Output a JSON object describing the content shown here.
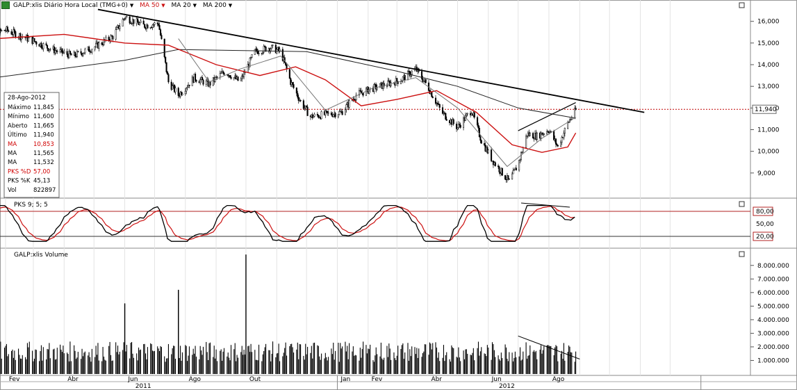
{
  "toolbar": {
    "symbol_label": "GALP:xlis Diário Hora Local (TMG+0)",
    "ma1_label": "MA 50",
    "ma2_label": "MA 20",
    "ma3_label": "MA 200",
    "symbol_icon": "stock-chart-icon"
  },
  "info_box": {
    "date": "28-Ago-2012",
    "rows": [
      {
        "label": "Máximo",
        "value": "11,845",
        "color": "#000000"
      },
      {
        "label": "Mínimo",
        "value": "11,600",
        "color": "#000000"
      },
      {
        "label": "Aberto",
        "value": "11,665",
        "color": "#000000"
      },
      {
        "label": "Último",
        "value": "11,940",
        "color": "#000000"
      },
      {
        "label": "MA",
        "value": "10,853",
        "color": "#d00000"
      },
      {
        "label": "MA",
        "value": "11,565",
        "color": "#000000"
      },
      {
        "label": "MA",
        "value": "11,532",
        "color": "#000000"
      },
      {
        "label": "PKS %D",
        "value": "57,00",
        "color": "#d00000"
      },
      {
        "label": "PKS %K",
        "value": "45,13",
        "color": "#000000"
      },
      {
        "label": "Vol",
        "value": "822897",
        "color": "#000000"
      }
    ]
  },
  "colors": {
    "price": "#000000",
    "ma_red": "#cc1111",
    "ma_gray": "#777777",
    "ma_long": "#222222",
    "pks_d": "#cc1111",
    "pks_k": "#000000",
    "band": "#b22222"
  },
  "chart_data": [
    {
      "type": "candlestick",
      "title": "GALP:xlis Diário Hora Local (TMG+0)",
      "y_ticks": [
        "16,000",
        "15,000",
        "14,000",
        "13,000",
        "12,000",
        "11,000",
        "10,000",
        "9,000"
      ],
      "ylim": [
        8.0,
        16.6
      ],
      "current_price_label": "11,940",
      "current_price": 11.94,
      "points": [
        {
          "date": "2011-01-05",
          "price": 15.2
        },
        {
          "date": "2011-02-01",
          "price": 15.6
        },
        {
          "date": "2011-03-01",
          "price": 15.1
        },
        {
          "date": "2011-03-20",
          "price": 14.7
        },
        {
          "date": "2011-04-10",
          "price": 14.4
        },
        {
          "date": "2011-05-01",
          "price": 14.8
        },
        {
          "date": "2011-05-20",
          "price": 15.3
        },
        {
          "date": "2011-06-01",
          "price": 16.2
        },
        {
          "date": "2011-06-20",
          "price": 15.8
        },
        {
          "date": "2011-07-05",
          "price": 15.9
        },
        {
          "date": "2011-07-15",
          "price": 13.2
        },
        {
          "date": "2011-07-25",
          "price": 12.6
        },
        {
          "date": "2011-08-10",
          "price": 13.4
        },
        {
          "date": "2011-08-25",
          "price": 13.1
        },
        {
          "date": "2011-09-10",
          "price": 13.7
        },
        {
          "date": "2011-09-25",
          "price": 13.2
        },
        {
          "date": "2011-10-10",
          "price": 14.6
        },
        {
          "date": "2011-10-25",
          "price": 14.8
        },
        {
          "date": "2011-11-05",
          "price": 14.6
        },
        {
          "date": "2011-11-15",
          "price": 13.2
        },
        {
          "date": "2011-11-25",
          "price": 12.3
        },
        {
          "date": "2011-12-05",
          "price": 11.6
        },
        {
          "date": "2011-12-20",
          "price": 11.7
        },
        {
          "date": "2012-01-05",
          "price": 11.8
        },
        {
          "date": "2012-01-20",
          "price": 12.6
        },
        {
          "date": "2012-02-05",
          "price": 12.9
        },
        {
          "date": "2012-02-20",
          "price": 13.1
        },
        {
          "date": "2012-03-05",
          "price": 13.3
        },
        {
          "date": "2012-03-20",
          "price": 13.8
        },
        {
          "date": "2012-04-01",
          "price": 13.0
        },
        {
          "date": "2012-04-15",
          "price": 11.8
        },
        {
          "date": "2012-05-01",
          "price": 11.1
        },
        {
          "date": "2012-05-15",
          "price": 11.9
        },
        {
          "date": "2012-05-25",
          "price": 10.5
        },
        {
          "date": "2012-06-05",
          "price": 9.6
        },
        {
          "date": "2012-06-15",
          "price": 9.0
        },
        {
          "date": "2012-06-22",
          "price": 8.6
        },
        {
          "date": "2012-07-01",
          "price": 9.4
        },
        {
          "date": "2012-07-10",
          "price": 10.8
        },
        {
          "date": "2012-07-20",
          "price": 10.7
        },
        {
          "date": "2012-08-01",
          "price": 11.0
        },
        {
          "date": "2012-08-10",
          "price": 10.2
        },
        {
          "date": "2012-08-20",
          "price": 11.3
        },
        {
          "date": "2012-08-28",
          "price": 11.9
        }
      ],
      "ma_red": [
        {
          "date": "2011-01-05",
          "value": 15.15
        },
        {
          "date": "2011-04-01",
          "value": 15.4
        },
        {
          "date": "2011-06-01",
          "value": 15.0
        },
        {
          "date": "2011-07-15",
          "value": 14.9
        },
        {
          "date": "2011-09-01",
          "value": 14.0
        },
        {
          "date": "2011-10-15",
          "value": 13.5
        },
        {
          "date": "2011-11-20",
          "value": 13.9
        },
        {
          "date": "2011-12-20",
          "value": 13.3
        },
        {
          "date": "2012-01-25",
          "value": 12.1
        },
        {
          "date": "2012-03-01",
          "value": 12.4
        },
        {
          "date": "2012-04-10",
          "value": 12.8
        },
        {
          "date": "2012-05-20",
          "value": 11.8
        },
        {
          "date": "2012-06-25",
          "value": 10.3
        },
        {
          "date": "2012-07-25",
          "value": 9.95
        },
        {
          "date": "2012-08-20",
          "value": 10.2
        },
        {
          "date": "2012-08-28",
          "value": 10.85
        }
      ],
      "ma_long": [
        {
          "date": "2011-01-05",
          "value": 13.3
        },
        {
          "date": "2011-06-01",
          "value": 14.2
        },
        {
          "date": "2011-07-25",
          "value": 14.7
        },
        {
          "date": "2011-12-01",
          "value": 14.6
        },
        {
          "date": "2012-03-01",
          "value": 13.7
        },
        {
          "date": "2012-05-01",
          "value": 13.0
        },
        {
          "date": "2012-07-01",
          "value": 12.0
        },
        {
          "date": "2012-08-28",
          "value": 11.53
        }
      ],
      "ma_gray": [
        {
          "date": "2011-07-25",
          "value": 15.2
        },
        {
          "date": "2011-08-25",
          "value": 13.2
        },
        {
          "date": "2011-09-25",
          "value": 13.8
        },
        {
          "date": "2011-11-05",
          "value": 14.4
        },
        {
          "date": "2011-12-20",
          "value": 11.9
        },
        {
          "date": "2012-02-05",
          "value": 12.9
        },
        {
          "date": "2012-03-20",
          "value": 13.4
        },
        {
          "date": "2012-05-01",
          "value": 12.0
        },
        {
          "date": "2012-06-20",
          "value": 9.3
        },
        {
          "date": "2012-07-25",
          "value": 10.6
        },
        {
          "date": "2012-08-28",
          "value": 11.57
        }
      ],
      "trendlines": [
        {
          "from": {
            "date": "2011-05-05",
            "value": 16.55
          },
          "to": {
            "date": "2012-11-05",
            "value": 11.8
          }
        },
        {
          "from": {
            "date": "2012-07-01",
            "value": 10.95
          },
          "to": {
            "date": "2012-08-28",
            "value": 12.25
          }
        }
      ]
    },
    {
      "type": "line",
      "title": "PKS 9; 5; 5",
      "y_ticks": [
        "80,00",
        "50,00",
        "20,00"
      ],
      "band_labels": [
        "80,00",
        "20,00"
      ],
      "ylim": [
        0,
        100
      ],
      "series": [
        {
          "name": "PKS %K",
          "color": "#000000"
        },
        {
          "name": "PKS %D",
          "color": "#cc1111"
        }
      ]
    },
    {
      "type": "bar",
      "title": "GALP:xlis Volume",
      "y_ticks": [
        "8.000.000",
        "7.000.000",
        "6.000.000",
        "5.000.000",
        "4.000.000",
        "3.000.000",
        "2.000.000",
        "1.000.000"
      ],
      "ylim": [
        0,
        8500000
      ],
      "spikes": [
        {
          "date": "2011-06-01",
          "value": 5200000
        },
        {
          "date": "2011-07-25",
          "value": 6200000
        },
        {
          "date": "2011-10-01",
          "value": 8800000
        }
      ],
      "volume_trendline": {
        "from": {
          "date": "2012-07-01",
          "value": 2800000
        },
        "to": {
          "date": "2012-09-01",
          "value": 1100000
        }
      }
    }
  ],
  "x_axis": {
    "months": [
      "Fev",
      "Abr",
      "Jun",
      "Ago",
      "Out",
      "Jan",
      "Fev",
      "Abr",
      "Jun",
      "Ago"
    ],
    "years": [
      "2011",
      "2012"
    ]
  }
}
